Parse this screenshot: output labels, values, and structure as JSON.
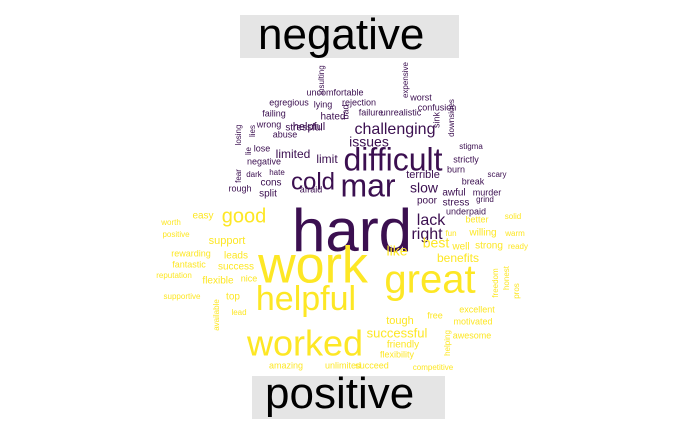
{
  "chart_data": {
    "type": "wordcloud",
    "groups": [
      {
        "name": "negative",
        "color": "#3b0f50",
        "words": [
          "hard",
          "difficult",
          "mar",
          "cold",
          "challenging",
          "issues",
          "limited",
          "limit",
          "lack",
          "right",
          "slow",
          "terrible",
          "poor",
          "stress",
          "awful",
          "murder",
          "underpaid",
          "break",
          "scary",
          "strictly",
          "stigma",
          "downsides",
          "burn",
          "sink",
          "confusion",
          "worst",
          "expensive",
          "unrealistic",
          "failure",
          "bad",
          "rejection",
          "uncomfortable",
          "insulting",
          "lying",
          "hated",
          "helpful",
          "stressful",
          "wrong",
          "abuse",
          "lose",
          "failing",
          "egregious",
          "lies",
          "losing",
          "fear",
          "lie",
          "negative",
          "dark",
          "hate",
          "rough",
          "cons",
          "split",
          "afraid",
          "grind"
        ]
      },
      {
        "name": "positive",
        "color": "#fde725",
        "words": [
          "work",
          "great",
          "helpful",
          "worked",
          "good",
          "support",
          "rewarding",
          "leads",
          "success",
          "fantastic",
          "flexible",
          "top",
          "lead",
          "available",
          "supportive",
          "reputation",
          "positive",
          "worth",
          "easy",
          "like",
          "best",
          "benefits",
          "well",
          "strong",
          "ready",
          "willing",
          "better",
          "solid",
          "warm",
          "fun",
          "free",
          "excellent",
          "motivated",
          "awesome",
          "tough",
          "successful",
          "friendly",
          "flexibility",
          "unlimited",
          "succeed",
          "amazing",
          "competitive",
          "freedom",
          "honest",
          "pros",
          "helping",
          "nice"
        ]
      }
    ]
  },
  "labels": {
    "top": "negative",
    "bottom": "positive"
  }
}
